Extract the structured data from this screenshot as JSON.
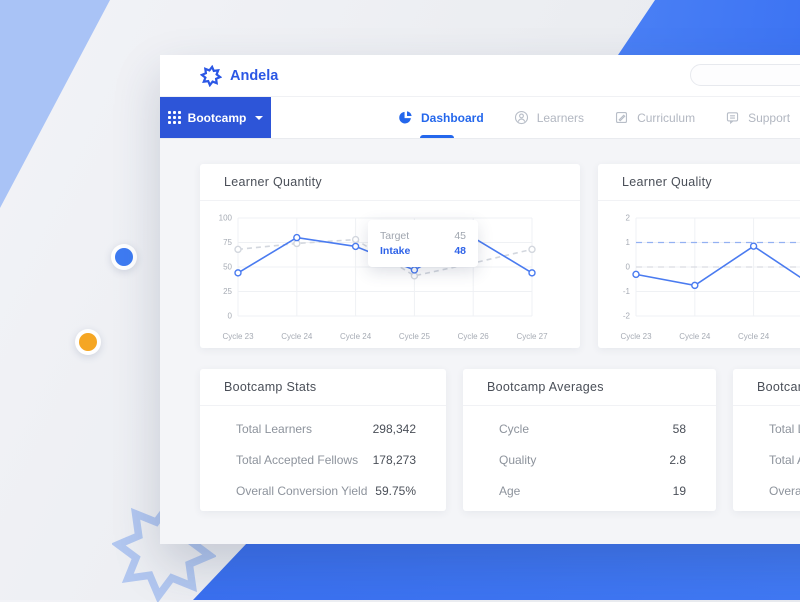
{
  "brand": {
    "name": "Andela"
  },
  "nav": {
    "context_switcher": {
      "label": "Bootcamp"
    },
    "tabs": [
      {
        "label": "Dashboard",
        "icon": "pie-chart-icon",
        "active": true
      },
      {
        "label": "Learners",
        "icon": "person-icon",
        "active": false
      },
      {
        "label": "Curriculum",
        "icon": "curriculum-icon",
        "active": false
      },
      {
        "label": "Support",
        "icon": "support-icon",
        "active": false
      }
    ]
  },
  "chart_data": [
    {
      "type": "line",
      "title": "Learner Quantity",
      "categories": [
        "Cycle 23",
        "Cycle 24",
        "Cycle 24",
        "Cycle 25",
        "Cycle 26",
        "Cycle 27"
      ],
      "series": [
        {
          "name": "Target",
          "values": [
            68,
            74,
            78,
            41,
            54,
            68
          ],
          "color": "#d3d7de",
          "style": "dashed"
        },
        {
          "name": "Intake",
          "values": [
            44,
            80,
            71,
            47,
            80,
            44
          ],
          "color": "#4a7bf0",
          "style": "solid"
        }
      ],
      "ylim": [
        0,
        100
      ],
      "yticks": [
        0,
        25,
        50,
        75,
        100
      ],
      "grid": true,
      "legend": "none",
      "tooltip": {
        "rows": [
          {
            "label": "Target",
            "value": "45"
          },
          {
            "label": "Intake",
            "value": "48"
          }
        ]
      }
    },
    {
      "type": "line",
      "title": "Learner Quality",
      "categories": [
        "Cycle 23",
        "Cycle 24",
        "Cycle 24",
        "",
        "",
        ""
      ],
      "series": [
        {
          "name": "Quality",
          "values": [
            -0.3,
            -0.75,
            0.85,
            -0.75
          ],
          "color": "#4a7bf0",
          "style": "solid"
        }
      ],
      "ylim": [
        -2,
        2
      ],
      "yticks": [
        -2,
        -1,
        0,
        1,
        2
      ],
      "grid": true,
      "legend": "none",
      "reference_lines": [
        {
          "y": 1,
          "color": "#93b1f2",
          "style": "dashed"
        },
        {
          "y": 0,
          "color": "#d9dce2",
          "style": "dashed"
        }
      ]
    }
  ],
  "stat_cards": [
    {
      "title": "Bootcamp Stats",
      "rows": [
        {
          "label": "Total Learners",
          "value": "298,342"
        },
        {
          "label": "Total Accepted Fellows",
          "value": "178,273"
        },
        {
          "label": "Overall Conversion Yield",
          "value": "59.75%"
        }
      ]
    },
    {
      "title": "Bootcamp Averages",
      "rows": [
        {
          "label": "Cycle",
          "value": "58"
        },
        {
          "label": "Quality",
          "value": "2.8"
        },
        {
          "label": "Age",
          "value": "19"
        }
      ]
    },
    {
      "title": "Bootcamp Stats",
      "rows": [
        {
          "label": "Total Learners",
          "value": ""
        },
        {
          "label": "Total Accepted Fellows",
          "value": ""
        },
        {
          "label": "Overall Conversion Yield",
          "value": ""
        }
      ]
    }
  ],
  "colors": {
    "accent_blue": "#2f63e8",
    "button_blue": "#2d55d8",
    "chart_line_blue": "#4a7bf0",
    "bright_blue": "#3f76f3",
    "light_blue": "#a9c3f6",
    "orange": "#f5a623",
    "panel_bg": "#f4f5f8",
    "card_bg": "#ffffff"
  }
}
